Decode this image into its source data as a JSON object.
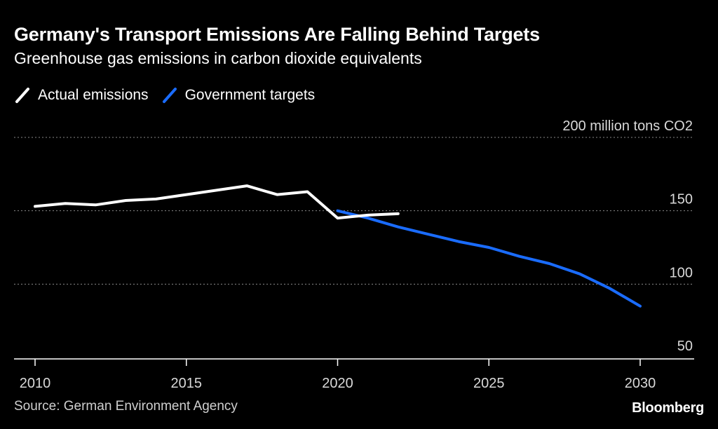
{
  "header": {
    "title": "Germany's Transport Emissions Are Falling Behind Targets",
    "subtitle": "Greenhouse gas emissions in carbon dioxide equivalents"
  },
  "legend": {
    "actual_label": "Actual emissions",
    "target_label": "Government targets"
  },
  "colors": {
    "background": "#000000",
    "actual": "#ffffff",
    "target": "#1a6cff",
    "gridline": "#8a8a8a",
    "axis_text": "#d9d9d9"
  },
  "chart_data": {
    "type": "line",
    "title": "Germany's Transport Emissions Are Falling Behind Targets",
    "subtitle": "Greenhouse gas emissions in carbon dioxide equivalents",
    "xlabel": "",
    "ylabel": "million tons CO2",
    "y_unit_label": "million tons CO2",
    "xlim": [
      2010,
      2032
    ],
    "ylim": [
      50,
      200
    ],
    "x_ticks": [
      2010,
      2015,
      2020,
      2025,
      2030
    ],
    "y_ticks": [
      50,
      100,
      150,
      200
    ],
    "grid": "horizontal dotted",
    "legend_position": "top-left",
    "series": [
      {
        "name": "Actual emissions",
        "color": "#ffffff",
        "x": [
          2010,
          2011,
          2012,
          2013,
          2014,
          2015,
          2016,
          2017,
          2018,
          2019,
          2020,
          2021,
          2022
        ],
        "values": [
          153,
          155,
          154,
          157,
          158,
          161,
          164,
          167,
          161,
          163,
          145,
          147,
          148
        ]
      },
      {
        "name": "Government targets",
        "color": "#1a6cff",
        "x": [
          2020,
          2021,
          2022,
          2023,
          2024,
          2025,
          2026,
          2027,
          2028,
          2029,
          2030
        ],
        "values": [
          150,
          145,
          139,
          134,
          129,
          125,
          119,
          114,
          107,
          97,
          85
        ]
      }
    ]
  },
  "footer": {
    "source": "Source: German Environment Agency",
    "brand": "Bloomberg"
  }
}
